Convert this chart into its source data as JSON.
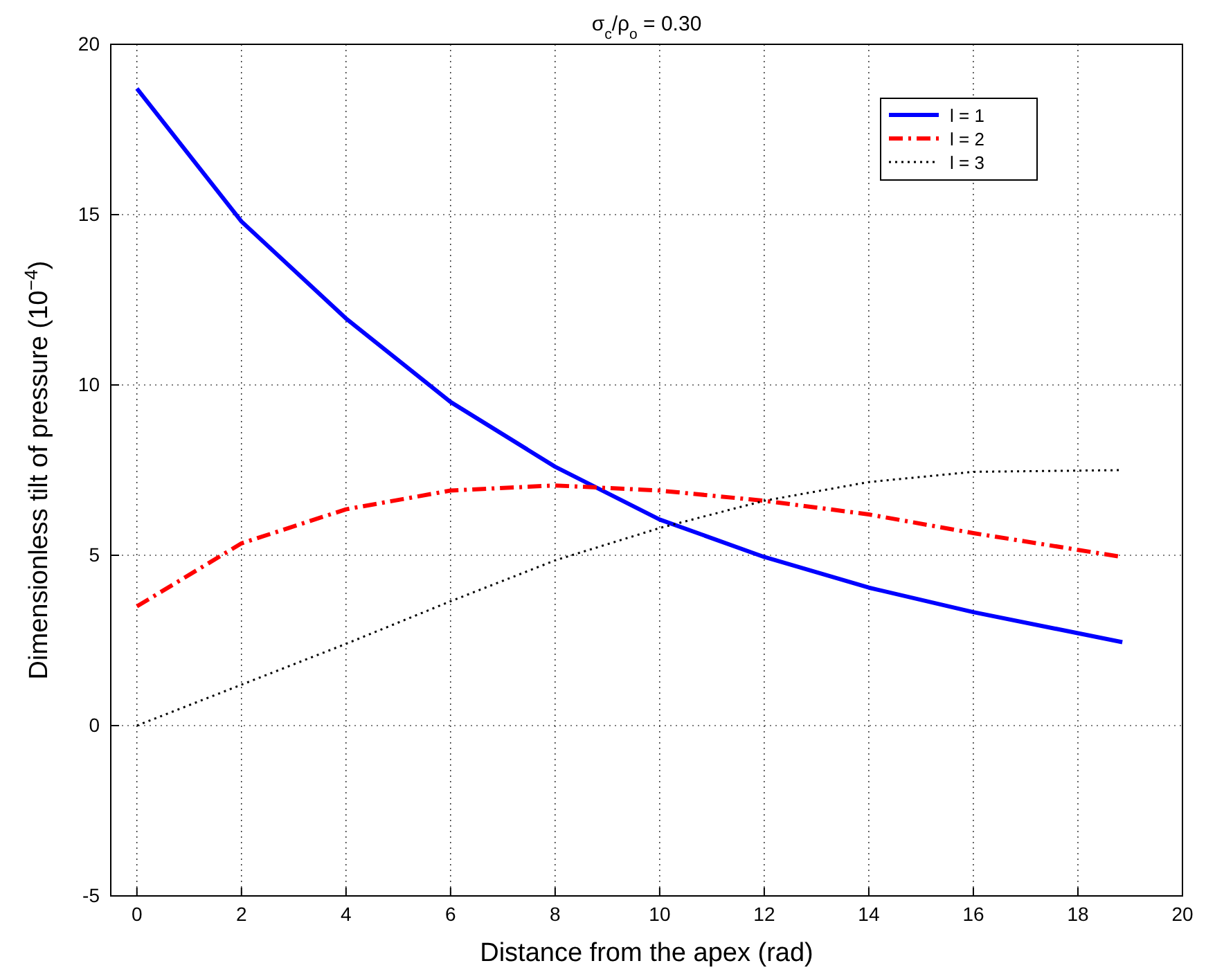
{
  "chart_data": {
    "type": "line",
    "title": "σ$_{c}$/ρ$_{o}$ = 0.30",
    "xlabel": "Distance from the apex (rad)",
    "ylabel": "Dimensionless tilt of pressure (10$^{−4}$)",
    "x": [
      0,
      2,
      4,
      6,
      8,
      10,
      12,
      14,
      16,
      18.85
    ],
    "series": [
      {
        "name": "l = 1",
        "color": "#0000ff",
        "line_style": "solid",
        "values": [
          18.7,
          14.8,
          11.95,
          9.5,
          7.6,
          6.05,
          4.95,
          4.05,
          3.33,
          2.45
        ]
      },
      {
        "name": "l = 2",
        "color": "#ff0000",
        "line_style": "dashed",
        "values": [
          3.5,
          5.35,
          6.35,
          6.9,
          7.05,
          6.9,
          6.6,
          6.2,
          5.65,
          4.95
        ]
      },
      {
        "name": "l = 3",
        "color": "#000000",
        "line_style": "dotted",
        "values": [
          0,
          1.2,
          2.4,
          3.65,
          4.85,
          5.8,
          6.6,
          7.15,
          7.45,
          7.5
        ]
      }
    ],
    "xlim": [
      -0.5,
      20
    ],
    "xticks": [
      0,
      2,
      4,
      6,
      8,
      10,
      12,
      14,
      16,
      18,
      20
    ],
    "ylim": [
      -5,
      20
    ],
    "yticks": [
      -5,
      0,
      5,
      10,
      15,
      20
    ],
    "grid": true,
    "legend": "top right",
    "marker": "none"
  }
}
